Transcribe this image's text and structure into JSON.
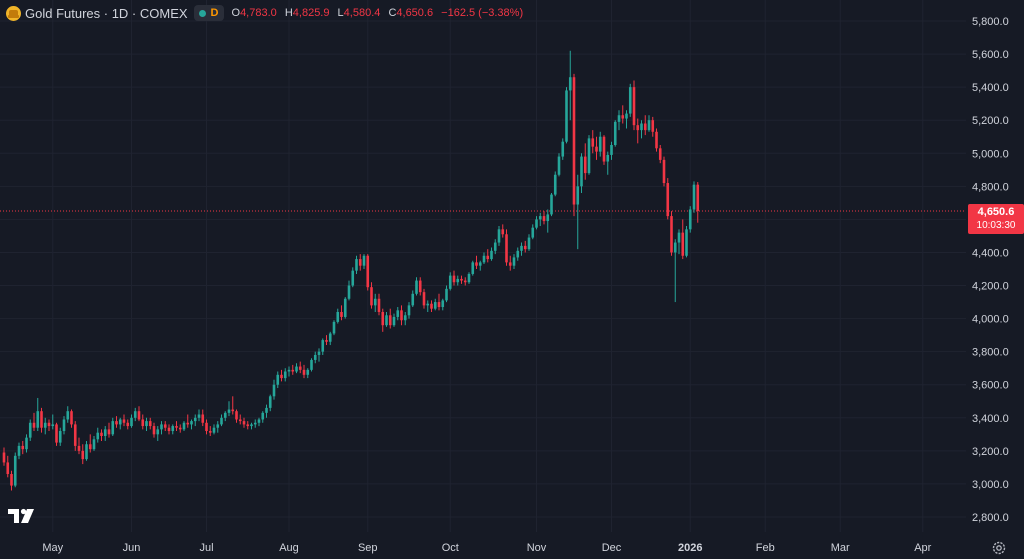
{
  "header": {
    "title": "Gold Futures · 1D · COMEX",
    "badge_letter": "D",
    "ohlc": [
      {
        "key": "O",
        "value": "4,783.0"
      },
      {
        "key": "H",
        "value": "4,825.9"
      },
      {
        "key": "L",
        "value": "4,580.4"
      },
      {
        "key": "C",
        "value": "4,650.6"
      }
    ],
    "change": "−162.5 (−3.38%)"
  },
  "price_tag": {
    "price": "4,650.6",
    "countdown": "10:03:30"
  },
  "colors": {
    "background": "#161a25",
    "up": "#26a69a",
    "down": "#f23645",
    "grid": "#1f2330",
    "text": "#d1d4dc"
  },
  "chart_data": {
    "type": "candlestick",
    "symbol": "Gold Futures",
    "interval": "1D",
    "exchange": "COMEX",
    "last_price": 4650.6,
    "ylim": [
      2720,
      5900
    ],
    "y_ticks": [
      {
        "value": 2800,
        "label": "2,800.0"
      },
      {
        "value": 3000,
        "label": "3,000.0"
      },
      {
        "value": 3200,
        "label": "3,200.0"
      },
      {
        "value": 3400,
        "label": "3,400.0"
      },
      {
        "value": 3600,
        "label": "3,600.0"
      },
      {
        "value": 3800,
        "label": "3,800.0"
      },
      {
        "value": 4000,
        "label": "4,000.0"
      },
      {
        "value": 4200,
        "label": "4,200.0"
      },
      {
        "value": 4400,
        "label": "4,400.0"
      },
      {
        "value": 4600,
        "label": "4,600.0"
      },
      {
        "value": 4800,
        "label": "4,800.0"
      },
      {
        "value": 5000,
        "label": "5,000.0"
      },
      {
        "value": 5200,
        "label": "5,200.0"
      },
      {
        "value": 5400,
        "label": "5,400.0"
      },
      {
        "value": 5600,
        "label": "5,600.0"
      },
      {
        "value": 5800,
        "label": "5,800.0"
      }
    ],
    "x_labels": [
      {
        "index": 13,
        "label": "May",
        "bold": false
      },
      {
        "index": 34,
        "label": "Jun",
        "bold": false
      },
      {
        "index": 54,
        "label": "Jul",
        "bold": false
      },
      {
        "index": 76,
        "label": "Aug",
        "bold": false
      },
      {
        "index": 97,
        "label": "Sep",
        "bold": false
      },
      {
        "index": 119,
        "label": "Oct",
        "bold": false
      },
      {
        "index": 142,
        "label": "Nov",
        "bold": false
      },
      {
        "index": 162,
        "label": "Dec",
        "bold": false
      },
      {
        "index": 183,
        "label": "2026",
        "bold": true
      },
      {
        "index": 203,
        "label": "Feb",
        "bold": false
      },
      {
        "index": 223,
        "label": "Mar",
        "bold": false
      },
      {
        "index": 245,
        "label": "Apr",
        "bold": false
      }
    ],
    "ohlc_columns": [
      "open",
      "high",
      "low",
      "close"
    ],
    "candles": [
      [
        3190,
        3220,
        3110,
        3130
      ],
      [
        3130,
        3170,
        3040,
        3060
      ],
      [
        3060,
        3080,
        2960,
        2990
      ],
      [
        2990,
        3190,
        2980,
        3170
      ],
      [
        3170,
        3250,
        3150,
        3230
      ],
      [
        3230,
        3260,
        3180,
        3210
      ],
      [
        3210,
        3300,
        3190,
        3280
      ],
      [
        3280,
        3390,
        3260,
        3370
      ],
      [
        3370,
        3430,
        3320,
        3340
      ],
      [
        3340,
        3520,
        3320,
        3440
      ],
      [
        3440,
        3460,
        3310,
        3340
      ],
      [
        3340,
        3400,
        3300,
        3370
      ],
      [
        3370,
        3390,
        3320,
        3350
      ],
      [
        3350,
        3420,
        3330,
        3360
      ],
      [
        3360,
        3370,
        3230,
        3250
      ],
      [
        3250,
        3340,
        3230,
        3320
      ],
      [
        3320,
        3410,
        3300,
        3390
      ],
      [
        3390,
        3470,
        3370,
        3440
      ],
      [
        3440,
        3450,
        3340,
        3360
      ],
      [
        3360,
        3380,
        3200,
        3230
      ],
      [
        3230,
        3280,
        3180,
        3200
      ],
      [
        3200,
        3240,
        3120,
        3150
      ],
      [
        3150,
        3260,
        3140,
        3240
      ],
      [
        3240,
        3300,
        3190,
        3210
      ],
      [
        3210,
        3290,
        3200,
        3270
      ],
      [
        3270,
        3340,
        3250,
        3310
      ],
      [
        3310,
        3330,
        3260,
        3290
      ],
      [
        3290,
        3350,
        3260,
        3330
      ],
      [
        3330,
        3370,
        3280,
        3300
      ],
      [
        3300,
        3400,
        3290,
        3380
      ],
      [
        3380,
        3410,
        3340,
        3360
      ],
      [
        3360,
        3400,
        3330,
        3390
      ],
      [
        3390,
        3420,
        3350,
        3370
      ],
      [
        3370,
        3390,
        3330,
        3350
      ],
      [
        3350,
        3420,
        3340,
        3400
      ],
      [
        3400,
        3460,
        3380,
        3440
      ],
      [
        3440,
        3470,
        3380,
        3390
      ],
      [
        3390,
        3420,
        3330,
        3350
      ],
      [
        3350,
        3400,
        3320,
        3380
      ],
      [
        3380,
        3400,
        3330,
        3350
      ],
      [
        3350,
        3370,
        3280,
        3300
      ],
      [
        3300,
        3350,
        3260,
        3330
      ],
      [
        3330,
        3380,
        3300,
        3360
      ],
      [
        3360,
        3380,
        3320,
        3340
      ],
      [
        3340,
        3360,
        3300,
        3320
      ],
      [
        3320,
        3360,
        3300,
        3350
      ],
      [
        3350,
        3380,
        3320,
        3340
      ],
      [
        3340,
        3360,
        3310,
        3330
      ],
      [
        3330,
        3380,
        3320,
        3370
      ],
      [
        3370,
        3420,
        3340,
        3360
      ],
      [
        3360,
        3390,
        3330,
        3380
      ],
      [
        3380,
        3420,
        3350,
        3400
      ],
      [
        3400,
        3450,
        3380,
        3420
      ],
      [
        3420,
        3450,
        3350,
        3370
      ],
      [
        3370,
        3390,
        3300,
        3320
      ],
      [
        3320,
        3350,
        3290,
        3310
      ],
      [
        3310,
        3360,
        3300,
        3340
      ],
      [
        3340,
        3380,
        3310,
        3360
      ],
      [
        3360,
        3420,
        3350,
        3400
      ],
      [
        3400,
        3440,
        3380,
        3430
      ],
      [
        3430,
        3500,
        3410,
        3450
      ],
      [
        3450,
        3530,
        3420,
        3440
      ],
      [
        3440,
        3450,
        3370,
        3390
      ],
      [
        3390,
        3420,
        3360,
        3380
      ],
      [
        3380,
        3400,
        3340,
        3360
      ],
      [
        3360,
        3380,
        3330,
        3350
      ],
      [
        3350,
        3370,
        3330,
        3360
      ],
      [
        3360,
        3390,
        3340,
        3370
      ],
      [
        3370,
        3400,
        3350,
        3390
      ],
      [
        3390,
        3440,
        3370,
        3430
      ],
      [
        3430,
        3480,
        3400,
        3460
      ],
      [
        3460,
        3540,
        3440,
        3530
      ],
      [
        3530,
        3630,
        3510,
        3600
      ],
      [
        3600,
        3680,
        3580,
        3660
      ],
      [
        3660,
        3690,
        3620,
        3640
      ],
      [
        3640,
        3700,
        3620,
        3680
      ],
      [
        3680,
        3710,
        3650,
        3690
      ],
      [
        3690,
        3720,
        3660,
        3680
      ],
      [
        3680,
        3730,
        3670,
        3710
      ],
      [
        3710,
        3740,
        3670,
        3690
      ],
      [
        3690,
        3720,
        3640,
        3660
      ],
      [
        3660,
        3700,
        3640,
        3690
      ],
      [
        3690,
        3760,
        3680,
        3750
      ],
      [
        3750,
        3800,
        3730,
        3780
      ],
      [
        3780,
        3820,
        3740,
        3800
      ],
      [
        3800,
        3880,
        3780,
        3870
      ],
      [
        3870,
        3900,
        3840,
        3860
      ],
      [
        3860,
        3920,
        3840,
        3910
      ],
      [
        3910,
        3990,
        3900,
        3980
      ],
      [
        3980,
        4060,
        3970,
        4040
      ],
      [
        4040,
        4080,
        3990,
        4010
      ],
      [
        4010,
        4130,
        4000,
        4120
      ],
      [
        4120,
        4230,
        4110,
        4200
      ],
      [
        4200,
        4310,
        4190,
        4290
      ],
      [
        4290,
        4380,
        4270,
        4360
      ],
      [
        4360,
        4390,
        4290,
        4320
      ],
      [
        4320,
        4390,
        4300,
        4380
      ],
      [
        4380,
        4390,
        4170,
        4190
      ],
      [
        4190,
        4220,
        4060,
        4080
      ],
      [
        4080,
        4150,
        4040,
        4120
      ],
      [
        4120,
        4150,
        4020,
        4040
      ],
      [
        4040,
        4060,
        3920,
        3960
      ],
      [
        3960,
        4040,
        3950,
        4020
      ],
      [
        4020,
        4060,
        3940,
        3960
      ],
      [
        3960,
        4030,
        3950,
        4010
      ],
      [
        4010,
        4070,
        3990,
        4050
      ],
      [
        4050,
        4080,
        3960,
        3990
      ],
      [
        3990,
        4040,
        3960,
        4020
      ],
      [
        4020,
        4100,
        4000,
        4080
      ],
      [
        4080,
        4170,
        4070,
        4150
      ],
      [
        4150,
        4250,
        4140,
        4230
      ],
      [
        4230,
        4250,
        4140,
        4160
      ],
      [
        4160,
        4180,
        4060,
        4080
      ],
      [
        4080,
        4110,
        4040,
        4090
      ],
      [
        4090,
        4110,
        4040,
        4060
      ],
      [
        4060,
        4120,
        4050,
        4100
      ],
      [
        4100,
        4150,
        4050,
        4070
      ],
      [
        4070,
        4120,
        4050,
        4110
      ],
      [
        4110,
        4200,
        4100,
        4180
      ],
      [
        4180,
        4280,
        4170,
        4260
      ],
      [
        4260,
        4290,
        4200,
        4220
      ],
      [
        4220,
        4260,
        4200,
        4240
      ],
      [
        4240,
        4260,
        4210,
        4230
      ],
      [
        4230,
        4250,
        4200,
        4220
      ],
      [
        4220,
        4280,
        4210,
        4270
      ],
      [
        4270,
        4350,
        4260,
        4340
      ],
      [
        4340,
        4380,
        4300,
        4320
      ],
      [
        4320,
        4350,
        4290,
        4340
      ],
      [
        4340,
        4400,
        4330,
        4380
      ],
      [
        4380,
        4420,
        4340,
        4360
      ],
      [
        4360,
        4430,
        4350,
        4410
      ],
      [
        4410,
        4480,
        4390,
        4460
      ],
      [
        4460,
        4560,
        4440,
        4540
      ],
      [
        4540,
        4570,
        4490,
        4510
      ],
      [
        4510,
        4540,
        4320,
        4340
      ],
      [
        4340,
        4380,
        4290,
        4320
      ],
      [
        4320,
        4390,
        4300,
        4370
      ],
      [
        4370,
        4430,
        4350,
        4410
      ],
      [
        4410,
        4460,
        4380,
        4440
      ],
      [
        4440,
        4470,
        4400,
        4420
      ],
      [
        4420,
        4510,
        4410,
        4490
      ],
      [
        4490,
        4570,
        4480,
        4550
      ],
      [
        4550,
        4620,
        4540,
        4600
      ],
      [
        4600,
        4640,
        4560,
        4620
      ],
      [
        4620,
        4650,
        4570,
        4590
      ],
      [
        4590,
        4660,
        4520,
        4630
      ],
      [
        4630,
        4760,
        4620,
        4750
      ],
      [
        4750,
        4890,
        4740,
        4870
      ],
      [
        4870,
        5000,
        4860,
        4980
      ],
      [
        4980,
        5090,
        4960,
        5070
      ],
      [
        5070,
        5400,
        5060,
        5380
      ],
      [
        5380,
        5620,
        5200,
        5460
      ],
      [
        5460,
        5480,
        4620,
        4690
      ],
      [
        4690,
        4870,
        4420,
        4800
      ],
      [
        4800,
        5000,
        4760,
        4980
      ],
      [
        4980,
        5060,
        4840,
        4880
      ],
      [
        4880,
        5110,
        4870,
        5090
      ],
      [
        5090,
        5140,
        5000,
        5040
      ],
      [
        5040,
        5100,
        4960,
        5010
      ],
      [
        5010,
        5130,
        4980,
        5100
      ],
      [
        5100,
        5110,
        4930,
        4950
      ],
      [
        4950,
        5010,
        4870,
        4990
      ],
      [
        4990,
        5070,
        4960,
        5050
      ],
      [
        5050,
        5200,
        5040,
        5190
      ],
      [
        5190,
        5260,
        5140,
        5230
      ],
      [
        5230,
        5290,
        5180,
        5210
      ],
      [
        5210,
        5260,
        5150,
        5240
      ],
      [
        5240,
        5420,
        5220,
        5400
      ],
      [
        5400,
        5440,
        5140,
        5170
      ],
      [
        5170,
        5210,
        5060,
        5140
      ],
      [
        5140,
        5200,
        5090,
        5180
      ],
      [
        5180,
        5230,
        5110,
        5140
      ],
      [
        5140,
        5230,
        5130,
        5200
      ],
      [
        5200,
        5220,
        5100,
        5130
      ],
      [
        5130,
        5150,
        5010,
        5030
      ],
      [
        5030,
        5050,
        4940,
        4960
      ],
      [
        4960,
        4980,
        4800,
        4820
      ],
      [
        4820,
        4850,
        4600,
        4620
      ],
      [
        4620,
        4650,
        4380,
        4400
      ],
      [
        4400,
        4480,
        4100,
        4460
      ],
      [
        4460,
        4540,
        4390,
        4520
      ],
      [
        4520,
        4600,
        4360,
        4380
      ],
      [
        4380,
        4560,
        4370,
        4540
      ],
      [
        4540,
        4680,
        4520,
        4660
      ],
      [
        4660,
        4830,
        4640,
        4810
      ],
      [
        4810,
        4826,
        4580,
        4651
      ]
    ]
  }
}
